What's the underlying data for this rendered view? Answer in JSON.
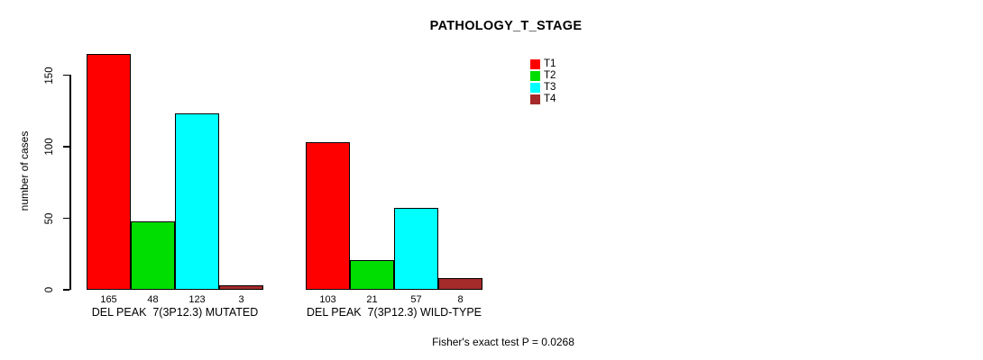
{
  "chart_data": {
    "type": "bar",
    "title": "PATHOLOGY_T_STAGE",
    "ylabel": "number of cases",
    "xlabel": "",
    "ylim": [
      0,
      165
    ],
    "yticks": [
      0,
      50,
      100,
      150
    ],
    "grid": false,
    "legend_position": "top-right",
    "categories": [
      "DEL PEAK  7(3P12.3) MUTATED",
      "DEL PEAK  7(3P12.3) WILD-TYPE"
    ],
    "series": [
      {
        "name": "T1",
        "color": "#FF0000",
        "values": [
          165,
          103
        ]
      },
      {
        "name": "T2",
        "color": "#00DD00",
        "values": [
          48,
          21
        ]
      },
      {
        "name": "T3",
        "color": "#00FFFF",
        "values": [
          123,
          57
        ]
      },
      {
        "name": "T4",
        "color": "#A52A2A",
        "values": [
          3,
          8
        ]
      }
    ],
    "bar_value_labels_shown": true,
    "annotation": "Fisher's exact test P = 0.0268"
  }
}
